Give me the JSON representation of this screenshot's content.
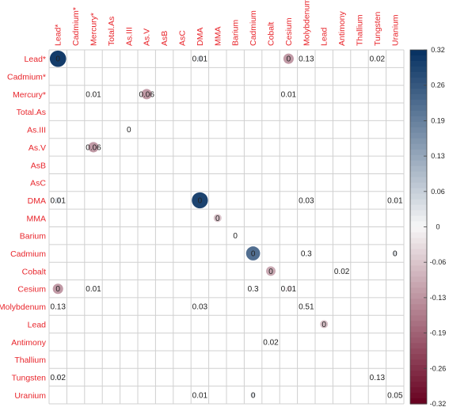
{
  "chart_data": {
    "type": "heatmap",
    "variables": [
      "Lead*",
      "Cadmium*",
      "Mercury*",
      "Total.As",
      "As.III",
      "As.V",
      "AsB",
      "AsC",
      "DMA",
      "MMA",
      "Barium",
      "Cadmium",
      "Cobalt",
      "Cesium",
      "Molybdenum",
      "Lead",
      "Antimony",
      "Thallium",
      "Tungsten",
      "Uranium"
    ],
    "color_scale": {
      "min": -0.32,
      "max": 0.32,
      "ticks": [
        "0.32",
        "0.26",
        "0.19",
        "0.13",
        "0.06",
        "0",
        "-0.06",
        "-0.13",
        "-0.19",
        "-0.26",
        "-0.32"
      ],
      "colors": {
        "negative": "#67001f",
        "neutral": "#f7f7f7",
        "positive": "#053061"
      }
    },
    "cells": [
      {
        "row": 0,
        "col": 0,
        "r": 0.3,
        "label": "0"
      },
      {
        "row": 0,
        "col": 8,
        "r": 0.04,
        "label": "0.01"
      },
      {
        "row": 0,
        "col": 13,
        "r": -0.12,
        "label": "0"
      },
      {
        "row": 0,
        "col": 14,
        "r": -0.01,
        "label": "0.13"
      },
      {
        "row": 0,
        "col": 18,
        "r": 0.01,
        "label": "0.02"
      },
      {
        "row": 2,
        "col": 2,
        "r": -0.01,
        "label": "0.01"
      },
      {
        "row": 2,
        "col": 5,
        "r": -0.12,
        "label": "0.06"
      },
      {
        "row": 2,
        "col": 13,
        "r": 0.0,
        "label": "0.01"
      },
      {
        "row": 4,
        "col": 4,
        "r": 0.0,
        "label": "0"
      },
      {
        "row": 5,
        "col": 2,
        "r": -0.12,
        "label": "0.06"
      },
      {
        "row": 8,
        "col": 0,
        "r": 0.04,
        "label": "0.01"
      },
      {
        "row": 8,
        "col": 8,
        "r": 0.29,
        "label": "0"
      },
      {
        "row": 8,
        "col": 14,
        "r": 0.0,
        "label": "0.03"
      },
      {
        "row": 8,
        "col": 19,
        "r": 0.01,
        "label": "0.01"
      },
      {
        "row": 9,
        "col": 9,
        "r": -0.07,
        "label": "0"
      },
      {
        "row": 10,
        "col": 10,
        "r": 0.0,
        "label": "0"
      },
      {
        "row": 11,
        "col": 11,
        "r": 0.22,
        "label": "0"
      },
      {
        "row": 11,
        "col": 14,
        "r": 0.0,
        "label": "0.3"
      },
      {
        "row": 11,
        "col": 19,
        "r": 0.03,
        "label": "0"
      },
      {
        "row": 12,
        "col": 12,
        "r": -0.1,
        "label": "0"
      },
      {
        "row": 12,
        "col": 16,
        "r": 0.0,
        "label": "0.02"
      },
      {
        "row": 13,
        "col": 0,
        "r": -0.12,
        "label": "0"
      },
      {
        "row": 13,
        "col": 2,
        "r": 0.0,
        "label": "0.01"
      },
      {
        "row": 13,
        "col": 11,
        "r": 0.0,
        "label": "0.3"
      },
      {
        "row": 13,
        "col": 13,
        "r": -0.03,
        "label": "0.01"
      },
      {
        "row": 14,
        "col": 0,
        "r": -0.01,
        "label": "0.13"
      },
      {
        "row": 14,
        "col": 8,
        "r": 0.0,
        "label": "0.03"
      },
      {
        "row": 14,
        "col": 14,
        "r": 0.0,
        "label": "0.51"
      },
      {
        "row": 15,
        "col": 15,
        "r": -0.07,
        "label": "0"
      },
      {
        "row": 16,
        "col": 12,
        "r": 0.0,
        "label": "0.02"
      },
      {
        "row": 18,
        "col": 0,
        "r": 0.02,
        "label": "0.02"
      },
      {
        "row": 18,
        "col": 18,
        "r": 0.0,
        "label": "0.13"
      },
      {
        "row": 19,
        "col": 8,
        "r": 0.0,
        "label": "0.01"
      },
      {
        "row": 19,
        "col": 11,
        "r": 0.03,
        "label": "0"
      },
      {
        "row": 19,
        "col": 19,
        "r": 0.0,
        "label": "0.05"
      }
    ]
  }
}
